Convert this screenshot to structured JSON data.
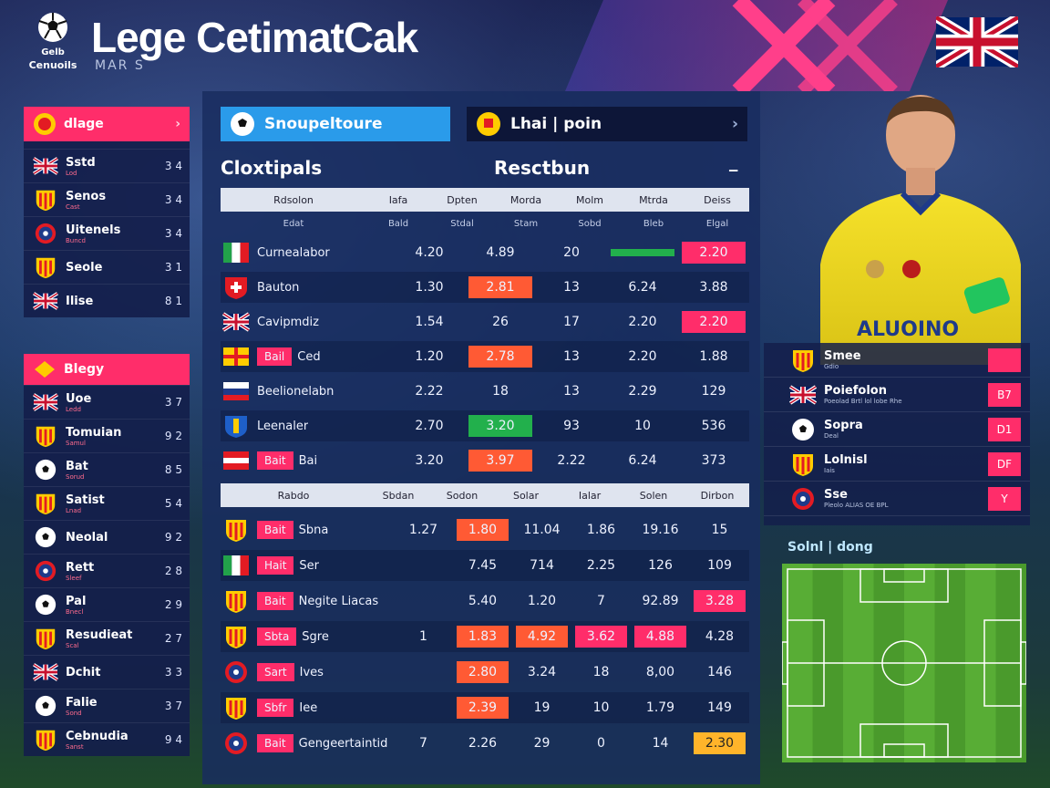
{
  "header": {
    "logo_text_top": "Gelb",
    "logo_text": "Cenuoils",
    "title": "Lege CetimatCak",
    "subtitle": "MAR S"
  },
  "colors": {
    "accent": "#ff2d6a",
    "tab_blue": "#2a9bea",
    "orange": "#ff5a34",
    "green": "#22b04c",
    "yellow": "#ffb42a"
  },
  "left_panel": {
    "card1": {
      "title": "dlage",
      "items": [
        {
          "icon": "uk-flag-icon",
          "name": "Sstd",
          "sub": "Lod",
          "value": "3 4"
        },
        {
          "icon": "crest-icon",
          "name": "Senos",
          "sub": "Cast",
          "value": "3 4"
        },
        {
          "icon": "badge-icon",
          "name": "Uitenels",
          "sub": "Buncd",
          "value": "3 4"
        },
        {
          "icon": "crest-icon",
          "name": "Seole",
          "sub": "",
          "value": "3 1"
        },
        {
          "icon": "uk-flag-icon",
          "name": "Ilise",
          "sub": "",
          "value": "8 1"
        }
      ]
    },
    "card2": {
      "title": "Blegy",
      "items": [
        {
          "icon": "uk-flag-icon",
          "name": "Uoe",
          "sub": "Ledd",
          "value": "3 7"
        },
        {
          "icon": "crest-icon",
          "name": "Tomuian",
          "sub": "Samul",
          "value": "9 2"
        },
        {
          "icon": "football-icon",
          "name": "Bat",
          "sub": "Sorud",
          "value": "8 5"
        },
        {
          "icon": "crest-icon",
          "name": "Satist",
          "sub": "Lnad",
          "value": "5 4"
        },
        {
          "icon": "football-icon",
          "name": "Neolal",
          "sub": "",
          "value": "9 2"
        },
        {
          "icon": "badge-icon",
          "name": "Rett",
          "sub": "Sleef",
          "value": "2 8"
        },
        {
          "icon": "football-icon",
          "name": "Pal",
          "sub": "Bnecl",
          "value": "2 9"
        },
        {
          "icon": "crest-icon",
          "name": "Resudieat",
          "sub": "Scal",
          "value": "2 7"
        },
        {
          "icon": "uk-flag-icon",
          "name": "Dchit",
          "sub": "",
          "value": "3 3"
        },
        {
          "icon": "football-icon",
          "name": "Falie",
          "sub": "Sond",
          "value": "3 7"
        },
        {
          "icon": "crest-icon",
          "name": "Cebnudia",
          "sub": "Sanst",
          "value": "9 4"
        }
      ]
    }
  },
  "main": {
    "tab1": "Snoupeltoure",
    "tab2": "Lhai | poin",
    "section_left": "Cloxtipals",
    "section_right": "Resctbun",
    "table1": {
      "headers": [
        "Rdsolon",
        "Iafa",
        "Dpten",
        "Morda",
        "Molm",
        "Mtrda",
        "Deiss"
      ],
      "subheaders": [
        "Edat",
        "Bald",
        "Stdal",
        "Stam",
        "Sobd",
        "Bleb",
        "Elgal"
      ],
      "rows": [
        {
          "flag": "italy-flag",
          "chip": "",
          "name": "Curnealabor",
          "vals": [
            "4.20",
            "4.89",
            "20",
            "",
            "2.20"
          ],
          "hl": [
            "",
            "",
            "",
            "green",
            "pink"
          ]
        },
        {
          "flag": "swiss-flag",
          "chip": "",
          "name": "Bauton",
          "vals": [
            "1.30",
            "2.81",
            "13",
            "6.24",
            "3.88"
          ],
          "hl": [
            "",
            "orange",
            "",
            "",
            ""
          ]
        },
        {
          "flag": "uk-flag",
          "chip": "",
          "name": "Cavipmdiz",
          "vals": [
            "1.54",
            "26",
            "17",
            "2.20",
            "2.20"
          ],
          "hl": [
            "",
            "",
            "",
            "",
            "pink"
          ]
        },
        {
          "flag": "spain-flag",
          "chip": "Bail",
          "name": "Ced",
          "vals": [
            "1.20",
            "2.78",
            "13",
            "2.20",
            "1.88"
          ],
          "hl": [
            "",
            "orange",
            "",
            "",
            ""
          ]
        },
        {
          "flag": "france-flag",
          "chip": "",
          "name": "Beelionelabn",
          "vals": [
            "2.22",
            "18",
            "13",
            "2.29",
            "129"
          ],
          "hl": [
            "",
            "",
            "",
            "",
            ""
          ]
        },
        {
          "flag": "shield-flag",
          "chip": "",
          "name": "Leenaler",
          "vals": [
            "2.70",
            "3.20",
            "93",
            "10",
            "536"
          ],
          "hl": [
            "",
            "green",
            "",
            "",
            ""
          ]
        },
        {
          "flag": "red-flag",
          "chip": "Bait",
          "name": "Bai",
          "vals": [
            "3.20",
            "3.97",
            "2.22",
            "6.24",
            "373"
          ],
          "hl": [
            "",
            "orange",
            "",
            "",
            ""
          ]
        }
      ]
    },
    "table2": {
      "headers": [
        "Rabdo",
        "Sbdan",
        "Sodon",
        "Solar",
        "Ialar",
        "Solen",
        "Dirbon"
      ],
      "rows": [
        {
          "flag": "crest-flag",
          "chip": "Bait",
          "name": "Sbna",
          "vals": [
            "1.27",
            "1.80",
            "11.04",
            "1.86",
            "19.16",
            "15"
          ],
          "hl": [
            "",
            "orange",
            "",
            "",
            "",
            ""
          ]
        },
        {
          "flag": "italy-flag",
          "chip": "Hait",
          "name": "Ser",
          "vals": [
            "",
            "7.45",
            "714",
            "2.25",
            "126",
            "109"
          ],
          "hl": [
            "",
            "",
            "",
            "",
            "",
            ""
          ]
        },
        {
          "flag": "crest-flag",
          "chip": "Bait",
          "name": "Negite Liacas",
          "vals": [
            "",
            "5.40",
            "1.20",
            "7",
            "92.89",
            "3.28"
          ],
          "hl": [
            "",
            "",
            "",
            "",
            "",
            "pink"
          ]
        },
        {
          "flag": "crest-flag",
          "chip": "Sbta",
          "name": "Sgre",
          "vals": [
            "1",
            "1.83",
            "4.92",
            "3.62",
            "4.88",
            "4.28"
          ],
          "hl": [
            "",
            "orange",
            "orange",
            "pink",
            "pink",
            ""
          ]
        },
        {
          "flag": "badge-flag",
          "chip": "Sart",
          "name": "Ives",
          "vals": [
            "",
            "2.80",
            "3.24",
            "18",
            "8,00",
            "146"
          ],
          "hl": [
            "",
            "orange",
            "",
            "",
            "",
            ""
          ]
        },
        {
          "flag": "crest-flag",
          "chip": "Sbfr",
          "name": "Iee",
          "vals": [
            "",
            "2.39",
            "19",
            "10",
            "1.79",
            "149"
          ],
          "hl": [
            "",
            "orange",
            "",
            "",
            "",
            ""
          ]
        },
        {
          "flag": "badge-flag",
          "chip": "Bait",
          "name": "Gengeertaintid",
          "vals": [
            "7",
            "2.26",
            "29",
            "0",
            "14",
            "2.30"
          ],
          "hl": [
            "",
            "",
            "",
            "",
            "",
            "yellow"
          ]
        }
      ]
    }
  },
  "right": {
    "list": [
      {
        "icon": "crest-icon",
        "name": "Smee",
        "sub": "Gdio",
        "badge": ""
      },
      {
        "icon": "uk-flag-icon",
        "name": "Poiefolon",
        "sub": "Poeolad Brtl lol lobe Rhe",
        "badge": "B7"
      },
      {
        "icon": "football-icon",
        "name": "Sopra",
        "sub": "Deal",
        "badge": "D1"
      },
      {
        "icon": "crest-icon",
        "name": "Lolnisl",
        "sub": "Iais",
        "badge": "DF"
      },
      {
        "icon": "badge-icon",
        "name": "Sse",
        "sub": "Pleolo ALIAS OE BPL",
        "badge": "Y"
      }
    ],
    "pitch_label": "Solnl | dong"
  }
}
